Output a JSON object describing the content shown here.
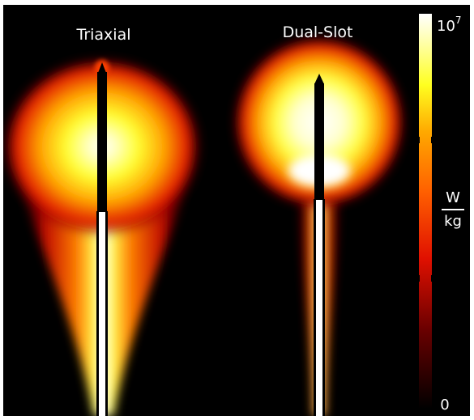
{
  "panels": [
    {
      "label": "Triaxial"
    },
    {
      "label": "Dual-Slot"
    }
  ],
  "colorbar": {
    "max_base": "10",
    "max_exp": "7",
    "min_label": "0",
    "unit_numerator": "W",
    "unit_denominator": "kg"
  },
  "colors": {
    "background": "#000000",
    "hot_white": "#ffffff",
    "yellow": "#ffff30",
    "orange": "#ff9000",
    "red": "#e01000",
    "dark_red": "#400000"
  }
}
